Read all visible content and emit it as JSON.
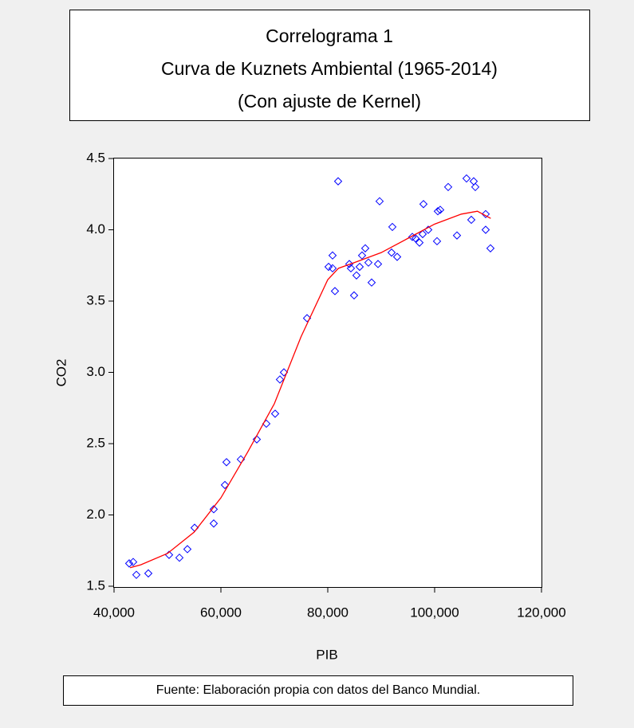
{
  "chart_data": {
    "type": "scatter",
    "title": [
      "Correlograma 1",
      "Curva de Kuznets Ambiental (1965-2014)",
      "(Con ajuste de Kernel)"
    ],
    "xlabel": "PIB",
    "ylabel": "CO2",
    "source": "Fuente: Elaboración propia con datos del Banco Mundial.",
    "xlim": [
      40000,
      120000
    ],
    "xticks": [
      {
        "value": 40000,
        "label": "40,000"
      },
      {
        "value": 60000,
        "label": "60,000"
      },
      {
        "value": 80000,
        "label": "80,000"
      },
      {
        "value": 100000,
        "label": "100,000"
      },
      {
        "value": 120000,
        "label": "120,000"
      }
    ],
    "ylim": [
      1.5,
      4.5
    ],
    "yticks": [
      1.5,
      {
        "value": 2,
        "label": "2.0"
      },
      2.5,
      {
        "value": 3,
        "label": "3.0"
      },
      3.5,
      {
        "value": 4,
        "label": "4.0"
      },
      4.5
    ],
    "series": [
      {
        "type": "scatter",
        "color": "#0000ff",
        "x": [
          42836,
          43582,
          44179,
          46418,
          50299,
          52239,
          53731,
          55075,
          58657,
          58657,
          60746,
          61045,
          63731,
          66716,
          68507,
          70149,
          71045,
          71791,
          76119,
          80149,
          80896,
          80896,
          81343,
          81940,
          84030,
          84328,
          84925,
          85373,
          85970,
          86418,
          87015,
          87612,
          88209,
          89403,
          89701,
          91940,
          92090,
          92985,
          95821,
          96418,
          97164,
          97761,
          97910,
          98806,
          100448,
          100597,
          101045,
          102537,
          104179,
          105970,
          106866,
          107313,
          107612,
          109552,
          109552,
          110448
        ],
        "values": [
          1.66,
          1.67,
          1.58,
          1.59,
          1.72,
          1.7,
          1.76,
          1.91,
          1.94,
          2.04,
          2.21,
          2.37,
          2.39,
          2.53,
          2.64,
          2.71,
          2.95,
          3.0,
          3.38,
          3.74,
          3.73,
          3.82,
          3.57,
          4.34,
          3.76,
          3.73,
          3.54,
          3.68,
          3.74,
          3.82,
          3.87,
          3.77,
          3.63,
          3.76,
          4.2,
          3.84,
          4.02,
          3.81,
          3.95,
          3.94,
          3.91,
          3.97,
          4.18,
          4.0,
          3.92,
          4.13,
          4.14,
          4.3,
          3.96,
          4.36,
          4.07,
          4.34,
          4.3,
          4.11,
          4.0,
          3.87
        ]
      },
      {
        "type": "line",
        "color": "#ff0000",
        "x": [
          43000,
          45000,
          50000,
          55000,
          60000,
          65000,
          70000,
          75000,
          80000,
          82000,
          85000,
          90000,
          95000,
          100000,
          105000,
          108000,
          110500
        ],
        "values": [
          1.63,
          1.65,
          1.73,
          1.88,
          2.12,
          2.44,
          2.78,
          3.25,
          3.65,
          3.73,
          3.77,
          3.84,
          3.94,
          4.04,
          4.11,
          4.13,
          4.08
        ]
      }
    ]
  }
}
